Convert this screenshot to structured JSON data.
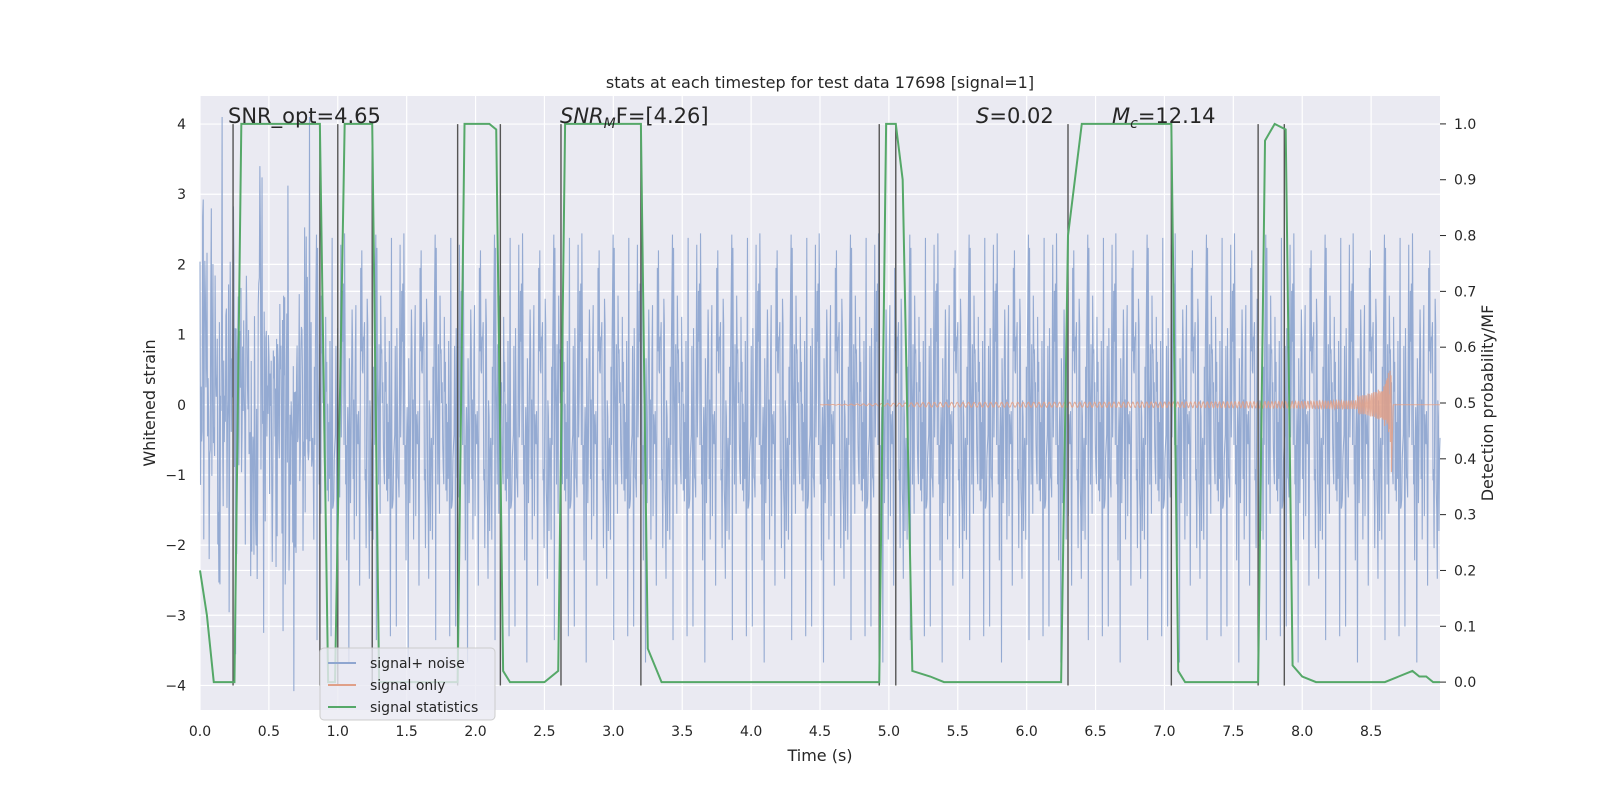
{
  "chart_data": {
    "type": "line",
    "title": "stats at each timestep for test data 17698 [signal=1]",
    "xlabel": "Time (s)",
    "ylabel": "Whitened strain",
    "ylabel_right": "Detection probability/MF",
    "xlim": [
      0.0,
      9.0
    ],
    "ylim": [
      -4.35,
      4.4
    ],
    "ylim_right": [
      -0.05,
      1.05
    ],
    "grid": true,
    "legend_position": "lower-left",
    "x_ticks": [
      "0.0",
      "0.5",
      "1.0",
      "1.5",
      "2.0",
      "2.5",
      "3.0",
      "3.5",
      "4.0",
      "4.5",
      "5.0",
      "5.5",
      "6.0",
      "6.5",
      "7.0",
      "7.5",
      "8.0",
      "8.5"
    ],
    "y_ticks": [
      "4",
      "3",
      "2",
      "1",
      "0",
      "−1",
      "−2",
      "−3",
      "−4"
    ],
    "y_ticks_right": [
      "1.0",
      "0.9",
      "0.8",
      "0.7",
      "0.6",
      "0.5",
      "0.4",
      "0.3",
      "0.2",
      "0.1",
      "0.0"
    ],
    "y_right_gridlines": [
      0.7,
      0.6,
      0.4,
      0.3,
      0.2,
      0.1
    ],
    "annotations": [
      {
        "prefix": "SNR_opt=4.65",
        "italic": "",
        "sub": "",
        "suffix": ""
      },
      {
        "prefix": "",
        "italic": "SNR",
        "sub": "M",
        "suffix": "F=[4.26]"
      },
      {
        "prefix": "",
        "italic": "S",
        "sub": "",
        "suffix": "=0.02"
      },
      {
        "prefix": "",
        "italic": "M",
        "sub": "c",
        "suffix": "=12.14"
      }
    ],
    "series": [
      {
        "name": "signal+ noise",
        "color": "#8fa6d0",
        "style": "noisy strain, amplitude about 2.4 sigma"
      },
      {
        "name": "signal only",
        "color": "#e0a088",
        "style": "chirp ending at 8.65 s, peak about 1.1"
      },
      {
        "name": "signal statistics",
        "color": "#55a868",
        "axis": "right",
        "x": [
          0.0,
          0.05,
          0.1,
          0.15,
          0.25,
          0.3,
          0.35,
          0.4,
          0.5,
          0.6,
          0.7,
          0.8,
          0.87,
          0.93,
          0.98,
          1.05,
          1.1,
          1.15,
          1.25,
          1.3,
          1.35,
          1.4,
          1.5,
          1.6,
          1.7,
          1.8,
          1.87,
          1.92,
          2.0,
          2.1,
          2.15,
          2.2,
          2.25,
          2.35,
          2.5,
          2.6,
          2.65,
          2.75,
          2.9,
          3.0,
          3.1,
          3.2,
          3.25,
          3.35,
          3.5,
          4.0,
          4.5,
          4.93,
          4.98,
          5.05,
          5.1,
          5.17,
          5.3,
          5.4,
          5.5,
          6.0,
          6.25,
          6.3,
          6.4,
          6.5,
          7.0,
          7.05,
          7.1,
          7.15,
          7.3,
          7.5,
          7.68,
          7.73,
          7.8,
          7.88,
          7.93,
          8.0,
          8.1,
          8.2,
          8.4,
          8.6,
          8.7,
          8.8,
          8.85,
          8.9,
          8.95,
          9.0
        ],
        "values": [
          0.2,
          0.12,
          0.0,
          0.0,
          0.0,
          1.0,
          1.0,
          1.0,
          1.0,
          1.0,
          1.0,
          1.0,
          1.0,
          0.0,
          0.0,
          1.0,
          1.0,
          1.0,
          1.0,
          0.0,
          0.0,
          0.0,
          0.0,
          0.0,
          0.0,
          0.0,
          0.0,
          1.0,
          1.0,
          1.0,
          0.99,
          0.02,
          0.0,
          0.0,
          0.0,
          0.02,
          1.0,
          1.0,
          1.0,
          1.0,
          1.0,
          1.0,
          0.06,
          0.0,
          0.0,
          0.0,
          0.0,
          0.0,
          1.0,
          1.0,
          0.9,
          0.02,
          0.01,
          0.0,
          0.0,
          0.0,
          0.0,
          0.8,
          1.0,
          1.0,
          1.0,
          1.0,
          0.02,
          0.0,
          0.0,
          0.0,
          0.0,
          0.97,
          1.0,
          0.99,
          0.03,
          0.01,
          0.0,
          0.0,
          0.0,
          0.0,
          0.01,
          0.02,
          0.01,
          0.01,
          0.0,
          0.0
        ]
      }
    ],
    "vertical_lines_x": [
      0.24,
      0.87,
      1.0,
      1.25,
      1.87,
      2.18,
      2.62,
      3.2,
      4.93,
      5.05,
      6.3,
      7.05,
      7.68,
      7.87
    ]
  }
}
